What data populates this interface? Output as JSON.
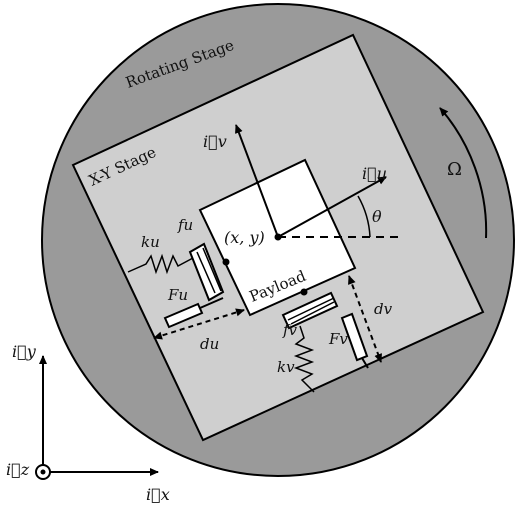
{
  "labels": {
    "rotating_stage": "Rotating Stage",
    "xy_stage": "X-Y Stage",
    "payload": "Payload",
    "omega": "Ω",
    "theta": "θ",
    "position": "(x, y)",
    "iu": "i⃗u",
    "iv": "i⃗v",
    "ix": "i⃗x",
    "iy": "i⃗y",
    "iz": "i⃗z",
    "ku": "ku",
    "fu": "fu",
    "Fu": "Fu",
    "du": "du",
    "kv": "kv",
    "fv": "fv",
    "Fv": "Fv",
    "dv": "dv"
  },
  "colors": {
    "rotating_stage": "#9a9a9a",
    "xy_stage": "#cfcfcf",
    "payload": "#ffffff",
    "line": "#000000"
  },
  "rotation_deg": 20
}
